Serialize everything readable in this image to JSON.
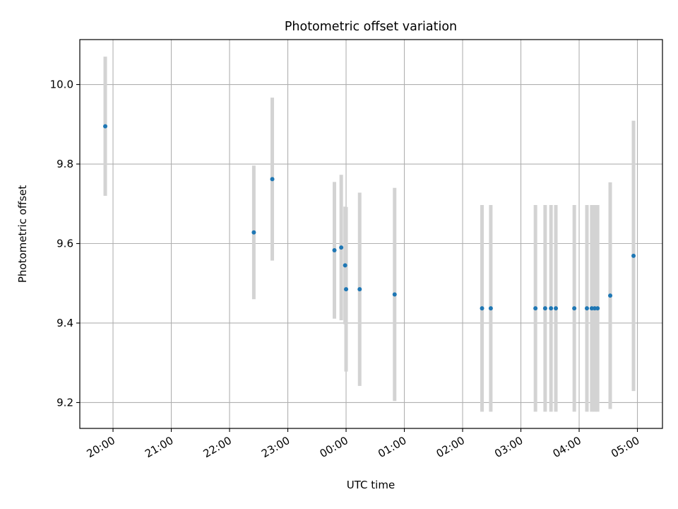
{
  "chart_data": {
    "type": "scatter",
    "title": "Photometric offset variation",
    "xlabel": "UTC time",
    "ylabel": "Photometric offset",
    "x_tick_labels": [
      "20:00",
      "21:00",
      "22:00",
      "23:00",
      "00:00",
      "01:00",
      "02:00",
      "03:00",
      "04:00",
      "05:00"
    ],
    "y_tick_labels": [
      "9.2",
      "9.4",
      "9.6",
      "9.8",
      "10.0"
    ],
    "y_ticks": [
      9.2,
      9.4,
      9.6,
      9.8,
      10.0
    ],
    "ylim": [
      9.135,
      10.113
    ],
    "xlim_hours": [
      19.43,
      29.43
    ],
    "grid": true,
    "x_date_format": "HH:MM",
    "colors": {
      "point": "#1f77b4",
      "errorbar": "#d3d3d3",
      "grid": "#b0b0b0"
    },
    "points": [
      {
        "time": "19:52",
        "y": 9.895,
        "err": 0.175
      },
      {
        "time": "22:25",
        "y": 9.628,
        "err": 0.168
      },
      {
        "time": "22:44",
        "y": 9.762,
        "err": 0.205
      },
      {
        "time": "23:48",
        "y": 9.583,
        "err": 0.172
      },
      {
        "time": "23:55",
        "y": 9.59,
        "err": 0.183
      },
      {
        "time": "23:59",
        "y": 9.545,
        "err": 0.148
      },
      {
        "time": "00:00",
        "y": 9.485,
        "err": 0.207
      },
      {
        "time": "00:14",
        "y": 9.485,
        "err": 0.243
      },
      {
        "time": "00:50",
        "y": 9.472,
        "err": 0.268
      },
      {
        "time": "02:20",
        "y": 9.437,
        "err": 0.26
      },
      {
        "time": "02:29",
        "y": 9.437,
        "err": 0.26
      },
      {
        "time": "03:15",
        "y": 9.437,
        "err": 0.26
      },
      {
        "time": "03:25",
        "y": 9.437,
        "err": 0.26
      },
      {
        "time": "03:31",
        "y": 9.437,
        "err": 0.26
      },
      {
        "time": "03:36",
        "y": 9.437,
        "err": 0.26
      },
      {
        "time": "03:55",
        "y": 9.437,
        "err": 0.26
      },
      {
        "time": "04:08",
        "y": 9.437,
        "err": 0.26
      },
      {
        "time": "04:13",
        "y": 9.437,
        "err": 0.26
      },
      {
        "time": "04:16",
        "y": 9.437,
        "err": 0.26
      },
      {
        "time": "04:19",
        "y": 9.437,
        "err": 0.26
      },
      {
        "time": "04:32",
        "y": 9.469,
        "err": 0.285
      },
      {
        "time": "04:56",
        "y": 9.569,
        "err": 0.34
      }
    ]
  }
}
